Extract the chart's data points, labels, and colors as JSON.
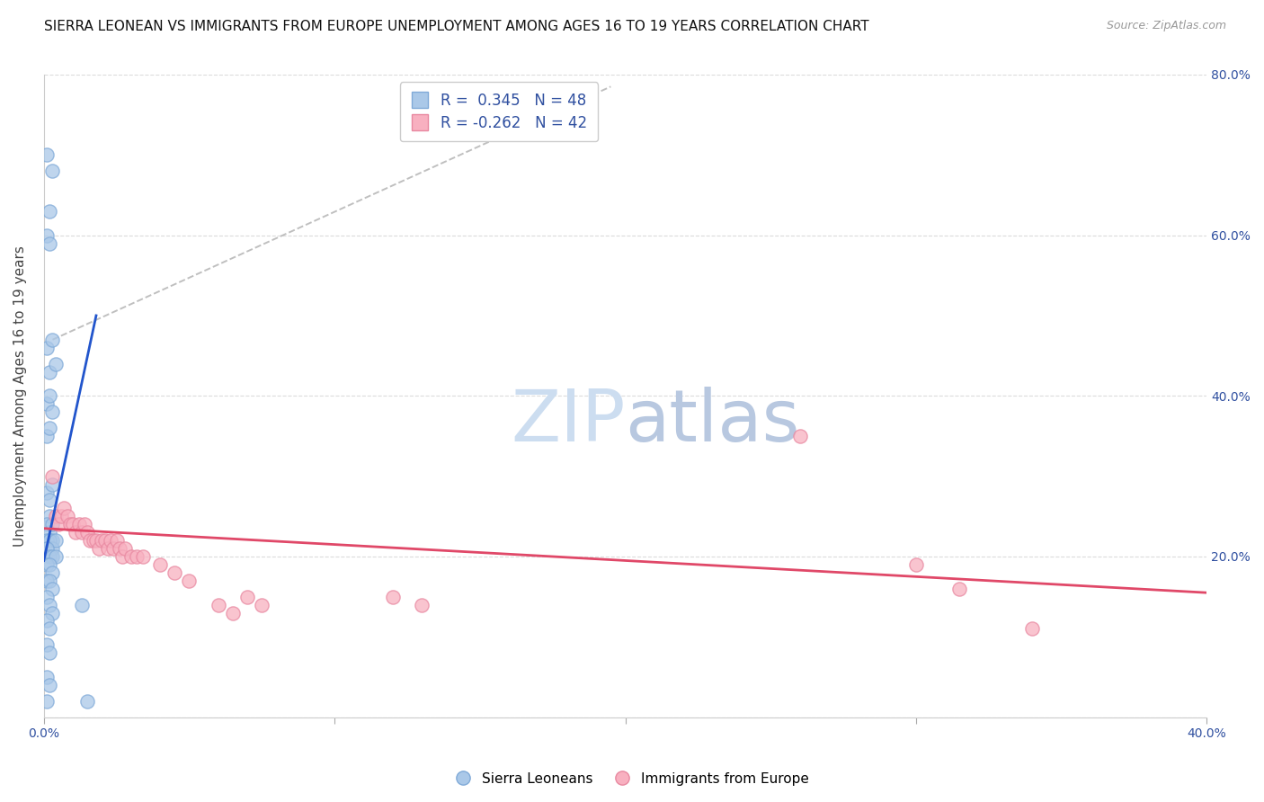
{
  "title": "SIERRA LEONEAN VS IMMIGRANTS FROM EUROPE UNEMPLOYMENT AMONG AGES 16 TO 19 YEARS CORRELATION CHART",
  "source": "Source: ZipAtlas.com",
  "ylabel": "Unemployment Among Ages 16 to 19 years",
  "xlim": [
    0.0,
    0.4
  ],
  "ylim": [
    0.0,
    0.8
  ],
  "y_ticks_right": [
    0.0,
    0.2,
    0.4,
    0.6,
    0.8
  ],
  "y_tick_labels_right": [
    "",
    "20.0%",
    "40.0%",
    "60.0%",
    "80.0%"
  ],
  "blue_scatter": [
    [
      0.001,
      0.7
    ],
    [
      0.002,
      0.63
    ],
    [
      0.003,
      0.68
    ],
    [
      0.001,
      0.6
    ],
    [
      0.002,
      0.59
    ],
    [
      0.001,
      0.46
    ],
    [
      0.002,
      0.43
    ],
    [
      0.003,
      0.47
    ],
    [
      0.004,
      0.44
    ],
    [
      0.001,
      0.39
    ],
    [
      0.002,
      0.4
    ],
    [
      0.003,
      0.38
    ],
    [
      0.001,
      0.35
    ],
    [
      0.002,
      0.36
    ],
    [
      0.001,
      0.28
    ],
    [
      0.002,
      0.27
    ],
    [
      0.002,
      0.25
    ],
    [
      0.003,
      0.29
    ],
    [
      0.001,
      0.24
    ],
    [
      0.002,
      0.23
    ],
    [
      0.003,
      0.24
    ],
    [
      0.003,
      0.22
    ],
    [
      0.001,
      0.22
    ],
    [
      0.002,
      0.22
    ],
    [
      0.003,
      0.21
    ],
    [
      0.004,
      0.22
    ],
    [
      0.001,
      0.21
    ],
    [
      0.002,
      0.2
    ],
    [
      0.003,
      0.2
    ],
    [
      0.004,
      0.2
    ],
    [
      0.001,
      0.19
    ],
    [
      0.002,
      0.19
    ],
    [
      0.003,
      0.18
    ],
    [
      0.001,
      0.17
    ],
    [
      0.002,
      0.17
    ],
    [
      0.003,
      0.16
    ],
    [
      0.001,
      0.15
    ],
    [
      0.002,
      0.14
    ],
    [
      0.003,
      0.13
    ],
    [
      0.001,
      0.12
    ],
    [
      0.002,
      0.11
    ],
    [
      0.001,
      0.09
    ],
    [
      0.002,
      0.08
    ],
    [
      0.001,
      0.05
    ],
    [
      0.002,
      0.04
    ],
    [
      0.001,
      0.02
    ],
    [
      0.013,
      0.14
    ],
    [
      0.015,
      0.02
    ]
  ],
  "pink_scatter": [
    [
      0.003,
      0.3
    ],
    [
      0.004,
      0.25
    ],
    [
      0.005,
      0.24
    ],
    [
      0.006,
      0.25
    ],
    [
      0.007,
      0.26
    ],
    [
      0.008,
      0.25
    ],
    [
      0.009,
      0.24
    ],
    [
      0.01,
      0.24
    ],
    [
      0.011,
      0.23
    ],
    [
      0.012,
      0.24
    ],
    [
      0.013,
      0.23
    ],
    [
      0.014,
      0.24
    ],
    [
      0.015,
      0.23
    ],
    [
      0.016,
      0.22
    ],
    [
      0.017,
      0.22
    ],
    [
      0.018,
      0.22
    ],
    [
      0.019,
      0.21
    ],
    [
      0.02,
      0.22
    ],
    [
      0.021,
      0.22
    ],
    [
      0.022,
      0.21
    ],
    [
      0.023,
      0.22
    ],
    [
      0.024,
      0.21
    ],
    [
      0.025,
      0.22
    ],
    [
      0.026,
      0.21
    ],
    [
      0.027,
      0.2
    ],
    [
      0.028,
      0.21
    ],
    [
      0.03,
      0.2
    ],
    [
      0.032,
      0.2
    ],
    [
      0.034,
      0.2
    ],
    [
      0.04,
      0.19
    ],
    [
      0.045,
      0.18
    ],
    [
      0.05,
      0.17
    ],
    [
      0.06,
      0.14
    ],
    [
      0.065,
      0.13
    ],
    [
      0.07,
      0.15
    ],
    [
      0.075,
      0.14
    ],
    [
      0.12,
      0.15
    ],
    [
      0.13,
      0.14
    ],
    [
      0.26,
      0.35
    ],
    [
      0.3,
      0.19
    ],
    [
      0.315,
      0.16
    ],
    [
      0.34,
      0.11
    ]
  ],
  "blue_line_x": [
    0.0,
    0.018
  ],
  "blue_line_y": [
    0.195,
    0.5
  ],
  "pink_line_x": [
    0.0,
    0.4
  ],
  "pink_line_y": [
    0.235,
    0.155
  ],
  "gray_dashed_line_x": [
    0.003,
    0.195
  ],
  "gray_dashed_line_y": [
    0.47,
    0.785
  ],
  "background_color": "#ffffff",
  "grid_color": "#cccccc",
  "title_fontsize": 11,
  "axis_label_fontsize": 11,
  "tick_fontsize": 10,
  "watermark_zip_color": "#c8d8f0",
  "watermark_atlas_color": "#c0c8e0",
  "watermark_fontsize": 58
}
